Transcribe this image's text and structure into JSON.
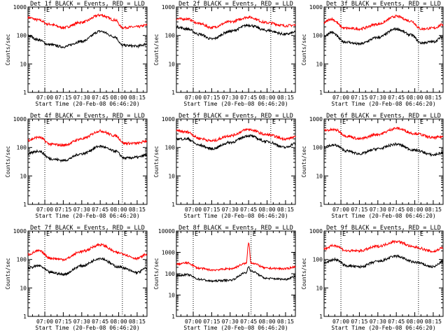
{
  "chart_data": [
    {
      "type": "line",
      "title": "Det 1f BLACK = Events, RED = LLD",
      "xlabel": "Start Time (20-Feb-08 06:46:20)",
      "ylabel": "Counts/sec",
      "yscale": "log",
      "ylim": [
        1,
        1000
      ],
      "x_ticks": [
        "07:00",
        "07:15",
        "07:30",
        "07:45",
        "08:00",
        "08:15"
      ],
      "y_ticks": [
        "1",
        "10",
        "100",
        "1000"
      ],
      "xlim": [
        "06:46:20",
        "08:23:00"
      ],
      "markers": [
        "07:00",
        "08:03"
      ],
      "marker_labels": [
        "E",
        "E"
      ],
      "series": [
        {
          "color": "#ff0000",
          "x": [
            "06:46",
            "06:55",
            "07:03",
            "07:15",
            "07:30",
            "07:45",
            "07:57",
            "08:03",
            "08:15",
            "08:23"
          ],
          "values": [
            430,
            350,
            250,
            190,
            290,
            520,
            350,
            190,
            200,
            230
          ]
        },
        {
          "color": "#000000",
          "x": [
            "06:46",
            "06:55",
            "07:03",
            "07:15",
            "07:30",
            "07:45",
            "07:57",
            "08:03",
            "08:15",
            "08:23"
          ],
          "values": [
            100,
            70,
            48,
            40,
            62,
            140,
            90,
            45,
            42,
            50
          ]
        }
      ]
    },
    {
      "type": "line",
      "title": "Det 2f BLACK = Events, RED = LLD",
      "xlabel": "Start Time (20-Feb-08 06:46:20)",
      "ylabel": "Counts/sec",
      "yscale": "log",
      "ylim": [
        1,
        1000
      ],
      "x_ticks": [
        "07:00",
        "07:15",
        "07:30",
        "07:45",
        "08:00",
        "08:15"
      ],
      "y_ticks": [
        "1",
        "10",
        "100",
        "1000"
      ],
      "xlim": [
        "06:46:20",
        "08:23:00"
      ],
      "markers": [
        "07:00",
        "08:03"
      ],
      "marker_labels": [
        "E",
        "E"
      ],
      "series": [
        {
          "color": "#ff0000",
          "x": [
            "06:46",
            "06:55",
            "07:05",
            "07:15",
            "07:30",
            "07:45",
            "08:00",
            "08:15",
            "08:23"
          ],
          "values": [
            380,
            380,
            260,
            190,
            300,
            440,
            280,
            220,
            230
          ]
        },
        {
          "color": "#000000",
          "x": [
            "06:46",
            "06:55",
            "07:05",
            "07:15",
            "07:30",
            "07:45",
            "08:00",
            "08:15",
            "08:23"
          ],
          "values": [
            200,
            170,
            110,
            75,
            140,
            230,
            150,
            110,
            130
          ]
        }
      ]
    },
    {
      "type": "line",
      "title": "Det 3f BLACK = Events, RED = LLD",
      "xlabel": "Start Time (20-Feb-08 06:46:20)",
      "ylabel": "Counts/sec",
      "yscale": "log",
      "ylim": [
        1,
        1000
      ],
      "x_ticks": [
        "07:00",
        "07:15",
        "07:30",
        "07:45",
        "08:00",
        "08:15"
      ],
      "y_ticks": [
        "1",
        "10",
        "100",
        "1000"
      ],
      "xlim": [
        "06:46:20",
        "08:23:00"
      ],
      "markers": [
        "07:00",
        "08:03"
      ],
      "marker_labels": [
        "E",
        "E"
      ],
      "series": [
        {
          "color": "#ff0000",
          "x": [
            "06:46",
            "06:52",
            "07:03",
            "07:15",
            "07:30",
            "07:45",
            "07:57",
            "08:05",
            "08:15",
            "08:23"
          ],
          "values": [
            280,
            380,
            180,
            170,
            250,
            470,
            320,
            170,
            180,
            240
          ]
        },
        {
          "color": "#000000",
          "x": [
            "06:46",
            "06:52",
            "07:03",
            "07:15",
            "07:30",
            "07:45",
            "07:57",
            "08:05",
            "08:15",
            "08:23"
          ],
          "values": [
            90,
            130,
            60,
            50,
            85,
            170,
            105,
            55,
            60,
            90
          ]
        }
      ]
    },
    {
      "type": "line",
      "title": "Det 4f BLACK = Events, RED = LLD",
      "xlabel": "Start Time (20-Feb-08 06:46:20)",
      "ylabel": "Counts/sec",
      "yscale": "log",
      "ylim": [
        1,
        1000
      ],
      "x_ticks": [
        "07:00",
        "07:15",
        "07:30",
        "07:45",
        "08:00",
        "08:15"
      ],
      "y_ticks": [
        "1",
        "10",
        "100",
        "1000"
      ],
      "xlim": [
        "06:46:20",
        "08:23:00"
      ],
      "markers": [
        "07:00",
        "08:03"
      ],
      "marker_labels": [
        "E",
        "E"
      ],
      "series": [
        {
          "color": "#ff0000",
          "x": [
            "06:46",
            "06:55",
            "07:05",
            "07:15",
            "07:30",
            "07:45",
            "07:57",
            "08:05",
            "08:15",
            "08:23"
          ],
          "values": [
            180,
            230,
            130,
            120,
            200,
            380,
            260,
            140,
            140,
            170
          ]
        },
        {
          "color": "#000000",
          "x": [
            "06:46",
            "06:55",
            "07:05",
            "07:15",
            "07:30",
            "07:45",
            "07:57",
            "08:05",
            "08:15",
            "08:23"
          ],
          "values": [
            60,
            75,
            40,
            35,
            60,
            110,
            75,
            42,
            45,
            55
          ]
        }
      ]
    },
    {
      "type": "line",
      "title": "Det 5f BLACK = Events, RED = LLD",
      "xlabel": "Start Time (20-Feb-08 06:46:20)",
      "ylabel": "Counts/sec",
      "yscale": "log",
      "ylim": [
        1,
        1000
      ],
      "x_ticks": [
        "07:00",
        "07:15",
        "07:30",
        "07:45",
        "08:00",
        "08:15"
      ],
      "y_ticks": [
        "1",
        "10",
        "100",
        "1000"
      ],
      "xlim": [
        "06:46:20",
        "08:23:00"
      ],
      "markers": [
        "07:00",
        "08:03"
      ],
      "marker_labels": [
        "E",
        "E"
      ],
      "series": [
        {
          "color": "#ff0000",
          "x": [
            "06:46",
            "06:55",
            "07:05",
            "07:15",
            "07:30",
            "07:45",
            "08:00",
            "08:15",
            "08:23"
          ],
          "values": [
            380,
            350,
            210,
            170,
            260,
            430,
            280,
            200,
            230
          ]
        },
        {
          "color": "#000000",
          "x": [
            "06:46",
            "06:55",
            "07:05",
            "07:15",
            "07:30",
            "07:45",
            "08:00",
            "08:15",
            "08:23"
          ],
          "values": [
            200,
            200,
            120,
            90,
            150,
            260,
            160,
            100,
            140
          ]
        }
      ]
    },
    {
      "type": "line",
      "title": "Det 6f BLACK = Events, RED = LLD",
      "xlabel": "Start Time (20-Feb-08 06:46:20)",
      "ylabel": "Counts/sec",
      "yscale": "log",
      "ylim": [
        1,
        1000
      ],
      "x_ticks": [
        "07:00",
        "07:15",
        "07:30",
        "07:45",
        "08:00",
        "08:15"
      ],
      "y_ticks": [
        "1",
        "10",
        "100",
        "1000"
      ],
      "xlim": [
        "06:46:20",
        "08:23:00"
      ],
      "markers": [
        "07:00",
        "08:03"
      ],
      "marker_labels": [
        "E",
        "E"
      ],
      "series": [
        {
          "color": "#ff0000",
          "x": [
            "06:46",
            "06:55",
            "07:05",
            "07:15",
            "07:30",
            "07:45",
            "08:00",
            "08:15",
            "08:23"
          ],
          "values": [
            400,
            420,
            250,
            200,
            290,
            470,
            310,
            220,
            240
          ]
        },
        {
          "color": "#000000",
          "x": [
            "06:46",
            "06:55",
            "07:05",
            "07:15",
            "07:30",
            "07:45",
            "08:00",
            "08:15",
            "08:23"
          ],
          "values": [
            110,
            120,
            75,
            60,
            90,
            130,
            80,
            55,
            65
          ]
        }
      ]
    },
    {
      "type": "line",
      "title": "Det 7f BLACK = Events, RED = LLD",
      "xlabel": "Start Time (20-Feb-08 06:46:20)",
      "ylabel": "Counts/sec",
      "yscale": "log",
      "ylim": [
        1,
        1000
      ],
      "x_ticks": [
        "07:00",
        "07:15",
        "07:30",
        "07:45",
        "08:00",
        "08:15"
      ],
      "y_ticks": [
        "1",
        "10",
        "100",
        "1000"
      ],
      "xlim": [
        "06:46:20",
        "08:23:00"
      ],
      "markers": [
        "07:00",
        "08:03"
      ],
      "marker_labels": [
        "E",
        "E"
      ],
      "series": [
        {
          "color": "#ff0000",
          "x": [
            "06:46",
            "06:55",
            "07:05",
            "07:15",
            "07:30",
            "07:45",
            "08:00",
            "08:15",
            "08:23"
          ],
          "values": [
            150,
            200,
            110,
            100,
            190,
            330,
            170,
            110,
            150
          ]
        },
        {
          "color": "#000000",
          "x": [
            "06:46",
            "06:55",
            "07:05",
            "07:15",
            "07:30",
            "07:45",
            "08:00",
            "08:15",
            "08:23"
          ],
          "values": [
            50,
            60,
            35,
            30,
            60,
            110,
            55,
            35,
            50
          ]
        }
      ]
    },
    {
      "type": "line",
      "title": "Det 8f BLACK = Events, RED = LLD",
      "xlabel": "Start Time (20-Feb-08 06:46:20)",
      "ylabel": "Counts/sec",
      "yscale": "log",
      "ylim": [
        1,
        10000
      ],
      "x_ticks": [
        "07:00",
        "07:15",
        "07:30",
        "07:45",
        "08:00",
        "08:15"
      ],
      "y_ticks": [
        "1",
        "10",
        "100",
        "1000",
        "10000"
      ],
      "xlim": [
        "06:46:20",
        "08:23:00"
      ],
      "markers": [
        "07:00",
        "07:47"
      ],
      "marker_labels": [
        "E",
        "E"
      ],
      "series": [
        {
          "color": "#ff0000",
          "x": [
            "06:46",
            "06:55",
            "07:05",
            "07:15",
            "07:30",
            "07:43",
            "07:45",
            "07:47",
            "08:00",
            "08:15",
            "08:23"
          ],
          "values": [
            280,
            320,
            180,
            150,
            170,
            300,
            2700,
            320,
            180,
            170,
            210
          ]
        },
        {
          "color": "#000000",
          "x": [
            "06:46",
            "06:55",
            "07:05",
            "07:15",
            "07:30",
            "07:43",
            "07:45",
            "07:47",
            "08:00",
            "08:15",
            "08:23"
          ],
          "values": [
            80,
            90,
            55,
            45,
            50,
            110,
            220,
            130,
            60,
            55,
            75
          ]
        }
      ]
    },
    {
      "type": "line",
      "title": "Det 9f BLACK = Events, RED = LLD",
      "xlabel": "Start Time (20-Feb-08 06:46:20)",
      "ylabel": "Counts/sec",
      "yscale": "log",
      "ylim": [
        1,
        1000
      ],
      "x_ticks": [
        "07:00",
        "07:15",
        "07:30",
        "07:45",
        "08:00",
        "08:15"
      ],
      "y_ticks": [
        "1",
        "10",
        "100",
        "1000"
      ],
      "xlim": [
        "06:46:20",
        "08:23:00"
      ],
      "markers": [
        "07:00",
        "08:03"
      ],
      "marker_labels": [
        "E",
        "E"
      ],
      "series": [
        {
          "color": "#ff0000",
          "x": [
            "06:46",
            "06:55",
            "07:05",
            "07:15",
            "07:30",
            "07:45",
            "08:00",
            "08:15",
            "08:23"
          ],
          "values": [
            240,
            310,
            200,
            200,
            290,
            430,
            270,
            190,
            260
          ]
        },
        {
          "color": "#000000",
          "x": [
            "06:46",
            "06:55",
            "07:05",
            "07:15",
            "07:30",
            "07:45",
            "08:00",
            "08:15",
            "08:23"
          ],
          "values": [
            75,
            100,
            60,
            55,
            85,
            130,
            80,
            55,
            85
          ]
        }
      ]
    }
  ]
}
